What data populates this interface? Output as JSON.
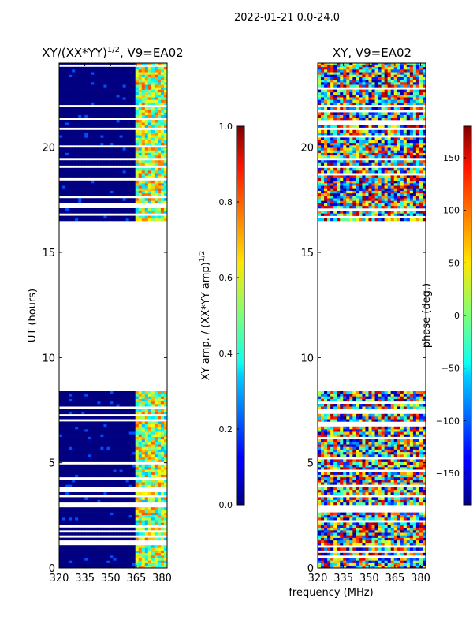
{
  "suptitle": "2022-01-21 0.0-24.0",
  "xlabel_shared": "frequency (MHz)",
  "chart_data": [
    {
      "type": "heatmap",
      "title_main": "XY/(XX*YY)",
      "title_sup": "1/2",
      "title_rest": ", V9=EA02",
      "xlabel": "",
      "ylabel": "UT (hours)",
      "xlim": [
        320,
        383
      ],
      "ylim": [
        0,
        24
      ],
      "xticks": [
        320,
        335,
        350,
        365,
        380
      ],
      "yticks": [
        0,
        5,
        10,
        15,
        20
      ],
      "data_coverage_hours": [
        [
          0.0,
          8.4
        ],
        [
          16.5,
          24.0
        ]
      ],
      "colorbar": {
        "label_main": "XY amp. / (XX*YY amp)",
        "label_sup": "1/2",
        "range": [
          0.0,
          1.0
        ],
        "ticks": [
          "0.0",
          "0.2",
          "0.4",
          "0.6",
          "0.8",
          "1.0"
        ],
        "tick_values": [
          0.0,
          0.2,
          0.4,
          0.6,
          0.8,
          1.0
        ]
      }
    },
    {
      "type": "heatmap",
      "title_main": "XY, V9=EA02",
      "xlabel": "",
      "ylabel": "",
      "xlim": [
        320,
        383
      ],
      "ylim": [
        0,
        24
      ],
      "xticks": [
        320,
        335,
        350,
        365,
        380
      ],
      "yticks": [
        0,
        5,
        10,
        15,
        20
      ],
      "data_coverage_hours": [
        [
          0.0,
          8.4
        ],
        [
          16.5,
          24.0
        ]
      ],
      "colorbar": {
        "label": "phase (deg.)",
        "range": [
          -180,
          180
        ],
        "ticks": [
          "−150",
          "−100",
          "−50",
          "0",
          "50",
          "100",
          "150"
        ],
        "tick_values": [
          -150,
          -100,
          -50,
          0,
          50,
          100,
          150
        ]
      }
    }
  ]
}
